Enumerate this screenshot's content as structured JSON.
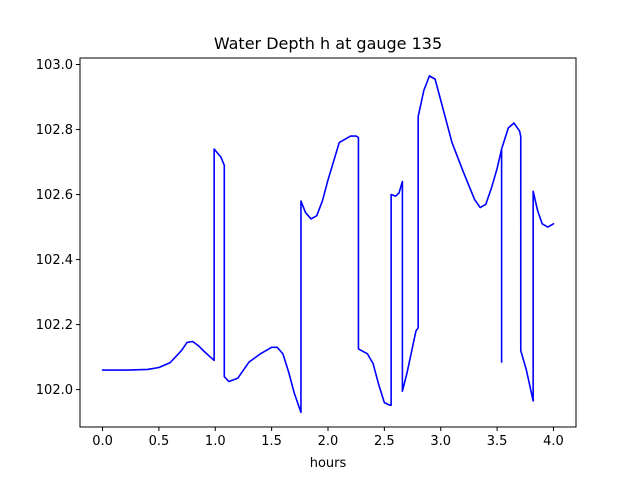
{
  "chart_data": {
    "type": "line",
    "title": "Water Depth h at gauge 135",
    "xlabel": "hours",
    "ylabel": "",
    "xlim": [
      -0.2,
      4.2
    ],
    "ylim": [
      101.885,
      103.02
    ],
    "xticks": [
      0.0,
      0.5,
      1.0,
      1.5,
      2.0,
      2.5,
      3.0,
      3.5,
      4.0
    ],
    "xtick_labels": [
      "0.0",
      "0.5",
      "1.0",
      "1.5",
      "2.0",
      "2.5",
      "3.0",
      "3.5",
      "4.0"
    ],
    "yticks": [
      102.0,
      102.2,
      102.4,
      102.6,
      102.8,
      103.0
    ],
    "ytick_labels": [
      "102.0",
      "102.2",
      "102.4",
      "102.6",
      "102.8",
      "103.0"
    ],
    "grid": false,
    "series": [
      {
        "color": "#0000ff",
        "x": [
          0.0,
          0.2,
          0.4,
          0.5,
          0.6,
          0.7,
          0.75,
          0.8,
          0.85,
          0.9,
          0.95,
          0.99,
          0.99,
          1.05,
          1.08,
          1.08,
          1.12,
          1.2,
          1.3,
          1.4,
          1.5,
          1.55,
          1.6,
          1.65,
          1.7,
          1.76,
          1.76,
          1.8,
          1.85,
          1.9,
          1.95,
          2.0,
          2.1,
          2.2,
          2.25,
          2.27,
          2.27,
          2.35,
          2.4,
          2.45,
          2.5,
          2.55,
          2.56,
          2.56,
          2.6,
          2.63,
          2.66,
          2.66,
          2.7,
          2.78,
          2.8,
          2.8,
          2.85,
          2.9,
          2.95,
          3.0,
          3.1,
          3.2,
          3.3,
          3.35,
          3.4,
          3.45,
          3.5,
          3.54,
          3.54,
          3.54,
          3.6,
          3.65,
          3.7,
          3.71,
          3.71,
          3.76,
          3.82,
          3.82,
          3.86,
          3.9,
          3.95,
          4.0
        ],
        "y": [
          102.06,
          102.06,
          102.062,
          102.068,
          102.083,
          102.12,
          102.145,
          102.148,
          102.135,
          102.118,
          102.102,
          102.09,
          102.74,
          102.715,
          102.69,
          102.04,
          102.025,
          102.035,
          102.085,
          102.11,
          102.13,
          102.13,
          102.11,
          102.055,
          101.99,
          101.93,
          102.58,
          102.545,
          102.525,
          102.535,
          102.58,
          102.645,
          102.76,
          102.78,
          102.78,
          102.775,
          102.125,
          102.11,
          102.08,
          102.015,
          101.96,
          101.952,
          101.952,
          102.6,
          102.595,
          102.605,
          102.64,
          101.995,
          102.05,
          102.18,
          102.19,
          102.84,
          102.92,
          102.965,
          102.955,
          102.89,
          102.76,
          102.67,
          102.585,
          102.56,
          102.57,
          102.62,
          102.68,
          102.74,
          102.085,
          102.74,
          102.805,
          102.82,
          102.795,
          102.778,
          102.12,
          102.06,
          101.965,
          102.61,
          102.55,
          102.51,
          102.5,
          102.51
        ]
      }
    ]
  }
}
